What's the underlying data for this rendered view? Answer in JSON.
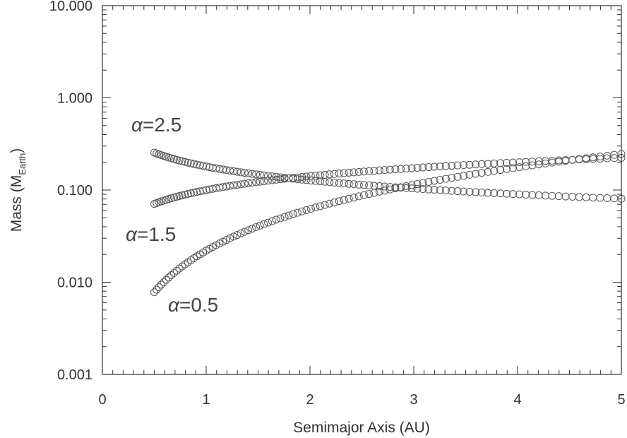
{
  "chart_data": {
    "type": "scatter",
    "title": "",
    "xlabel": "Semimajor Axis (AU)",
    "ylabel": {
      "prefix": "Mass (M",
      "subscript": "Earth",
      "suffix": ")"
    },
    "xlim": [
      0,
      5
    ],
    "ylim": [
      0.001,
      10
    ],
    "y_scale": "log",
    "x_ticks": [
      "0",
      "1",
      "2",
      "3",
      "4",
      "5"
    ],
    "y_ticks": [
      "0.001",
      "0.010",
      "0.100",
      "1.000",
      "10.000"
    ],
    "grid": false,
    "legend": "none",
    "marker": "open-circle",
    "marker_color": "#555555",
    "x_range": [
      0.5,
      5.0
    ],
    "series": [
      {
        "label": {
          "symbol": "α",
          "text": "=2.5"
        },
        "m_at_1au": 0.18,
        "mass_exponent": -0.5
      },
      {
        "label": {
          "symbol": "α",
          "text": "=1.5"
        },
        "m_at_1au": 0.1,
        "mass_exponent": 0.5
      },
      {
        "label": {
          "symbol": "α",
          "text": "=0.5"
        },
        "m_at_1au": 0.022,
        "mass_exponent": 1.5
      }
    ]
  }
}
